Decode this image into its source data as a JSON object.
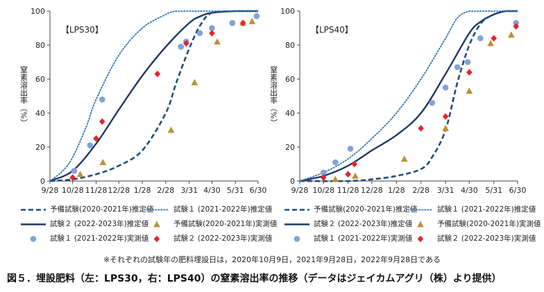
{
  "footnote": "※それぞれの試験年の肥料埋設日は，2020年10月9日，2021年9月28日，2022年9月28日である",
  "caption": "図５．埋設肥料（左：LPS30，右：LPS40）の窒素溶出率の推移（データはジェイカムアグリ（株）より提供）",
  "legend": [
    {
      "id": "est2020",
      "label": "予備試験(2020-2021年)推定値",
      "symbol": "dashed-line"
    },
    {
      "id": "est2021",
      "label": "試験１ (2021-2022年)推定値",
      "symbol": "dotted-line"
    },
    {
      "id": "est2022",
      "label": "試験２ (2022-2023年)推定値",
      "symbol": "solid-line"
    },
    {
      "id": "obs2020",
      "label": "予備試験(2020-2021年)実測値",
      "symbol": "triangle"
    },
    {
      "id": "obs2021",
      "label": "試験１ (2021-2022年)実測値",
      "symbol": "circle"
    },
    {
      "id": "obs2022",
      "label": "試験２ (2022-2023年)実測値",
      "symbol": "diamond"
    }
  ],
  "colors": {
    "dark_navy": "#1f3864",
    "blue_dotted": "#2e75b6",
    "dashed": "#1f4e79",
    "circle": "#7fa3d9",
    "triangle": "#bf8f30",
    "diamond": "#e8232a",
    "axis": "#444444"
  },
  "chart_data": [
    {
      "type": "line",
      "panel_label": "【LPS30】",
      "ylabel": "窒素溶出率（%）",
      "xlabel": "",
      "x_ticks": [
        "9/28",
        "10/28",
        "11/28",
        "12/28",
        "1/28",
        "2/28",
        "3/31",
        "4/30",
        "5/31",
        "6/30"
      ],
      "x_range": [
        "9/28",
        "6/30"
      ],
      "y_ticks": [
        0,
        20,
        40,
        60,
        80,
        100
      ],
      "ylim": [
        0,
        100
      ],
      "grid": false,
      "series": [
        {
          "id": "est2020",
          "style": "dashed",
          "x": [
            "9/28",
            "10/28",
            "11/28",
            "12/28",
            "1/28",
            "2/28",
            "3/14",
            "3/31",
            "4/15",
            "4/30",
            "5/31",
            "6/30"
          ],
          "y": [
            0,
            1,
            4,
            9,
            18,
            40,
            58,
            78,
            92,
            99,
            100,
            100
          ]
        },
        {
          "id": "est2021",
          "style": "dotted",
          "x": [
            "9/28",
            "10/15",
            "10/28",
            "11/15",
            "11/28",
            "12/28",
            "1/28",
            "2/28",
            "3/14",
            "3/31",
            "6/30"
          ],
          "y": [
            0,
            6,
            14,
            32,
            48,
            74,
            90,
            98,
            100,
            100,
            100
          ]
        },
        {
          "id": "est2022",
          "style": "solid",
          "x": [
            "9/28",
            "10/28",
            "11/28",
            "12/28",
            "1/28",
            "2/28",
            "3/31",
            "4/15",
            "4/30",
            "5/31",
            "6/30"
          ],
          "y": [
            0,
            6,
            22,
            42,
            62,
            79,
            93,
            97,
            99,
            100,
            100
          ]
        },
        {
          "id": "obs2020",
          "style": "triangle",
          "x": [
            "11/7",
            "12/7",
            "3/7",
            "4/7",
            "5/7",
            "6/10",
            "6/22"
          ],
          "y": [
            4,
            11,
            30,
            58,
            82,
            93,
            94
          ]
        },
        {
          "id": "obs2021",
          "style": "circle",
          "x": [
            "10/30",
            "11/20",
            "12/6",
            "3/20",
            "3/27",
            "4/14",
            "4/30",
            "5/27",
            "6/28"
          ],
          "y": [
            6,
            21,
            48,
            79,
            82,
            87,
            90,
            93,
            97
          ]
        },
        {
          "id": "obs2022",
          "style": "diamond",
          "x": [
            "10/28",
            "11/28",
            "12/6",
            "2/17",
            "3/27",
            "4/30",
            "6/10"
          ],
          "y": [
            2,
            25,
            35,
            63,
            81,
            87,
            93
          ]
        }
      ]
    },
    {
      "type": "line",
      "panel_label": "【LPS40】",
      "ylabel": "窒素溶出率（%）",
      "xlabel": "",
      "x_ticks": [
        "9/28",
        "10/28",
        "11/28",
        "12/28",
        "1/28",
        "2/28",
        "3/31",
        "4/30",
        "5/31",
        "6/30"
      ],
      "x_range": [
        "9/28",
        "6/30"
      ],
      "y_ticks": [
        0,
        20,
        40,
        60,
        80,
        100
      ],
      "ylim": [
        0,
        100
      ],
      "grid": false,
      "series": [
        {
          "id": "est2020",
          "style": "dashed",
          "x": [
            "9/28",
            "11/28",
            "12/28",
            "1/28",
            "2/28",
            "3/14",
            "3/31",
            "4/15",
            "4/30",
            "5/15",
            "5/31",
            "6/15",
            "6/30"
          ],
          "y": [
            0,
            0,
            1,
            3,
            7,
            14,
            30,
            58,
            80,
            93,
            98,
            100,
            100
          ]
        },
        {
          "id": "est2021",
          "style": "dotted",
          "x": [
            "9/28",
            "10/28",
            "11/28",
            "12/28",
            "1/28",
            "2/28",
            "3/31",
            "4/15",
            "4/30",
            "5/15",
            "6/30"
          ],
          "y": [
            0,
            5,
            13,
            25,
            40,
            60,
            84,
            96,
            100,
            100,
            100
          ]
        },
        {
          "id": "est2022",
          "style": "solid",
          "x": [
            "9/28",
            "10/28",
            "11/28",
            "12/28",
            "1/28",
            "2/28",
            "3/31",
            "4/30",
            "5/15",
            "5/31",
            "6/15",
            "6/30"
          ],
          "y": [
            0,
            3,
            9,
            18,
            27,
            40,
            63,
            87,
            94,
            98,
            100,
            100
          ]
        },
        {
          "id": "obs2020",
          "style": "triangle",
          "x": [
            "11/12",
            "12/7",
            "2/7",
            "3/31",
            "4/30",
            "5/27",
            "6/22"
          ],
          "y": [
            1,
            3,
            13,
            31,
            53,
            81,
            86
          ]
        },
        {
          "id": "obs2021",
          "style": "circle",
          "x": [
            "10/28",
            "11/12",
            "12/1",
            "3/14",
            "3/31",
            "4/15",
            "4/28",
            "5/14",
            "6/28"
          ],
          "y": [
            5,
            11,
            19,
            46,
            55,
            67,
            70,
            84,
            93
          ]
        },
        {
          "id": "obs2022",
          "style": "diamond",
          "x": [
            "10/28",
            "11/28",
            "12/6",
            "2/28",
            "3/31",
            "4/30",
            "5/31",
            "6/28"
          ],
          "y": [
            2,
            4,
            10,
            31,
            38,
            64,
            84,
            91
          ]
        }
      ]
    }
  ]
}
